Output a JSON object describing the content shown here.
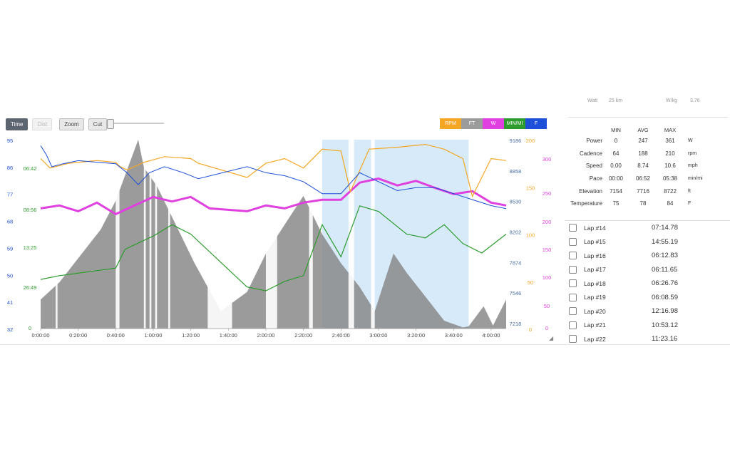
{
  "toolbar": {
    "time_label": "Time",
    "dist_label": "Dist",
    "zoom_label": "Zoom",
    "cut_label": "Cut"
  },
  "legend": [
    {
      "label": "RPM",
      "color": "#f5a623"
    },
    {
      "label": "FT",
      "color": "#9b9b9b"
    },
    {
      "label": "W",
      "color": "#e040e0"
    },
    {
      "label": "MIN/MI",
      "color": "#2e9b2e"
    },
    {
      "label": "F",
      "color": "#1d4fd8"
    }
  ],
  "summary_top": {
    "left": "Watt",
    "left_val": "25 km",
    "right": "W/kg",
    "right_val": "3.76"
  },
  "stats": {
    "headers": [
      "MIN",
      "AVG",
      "MAX"
    ],
    "rows": [
      {
        "label": "Power",
        "min": "0",
        "avg": "247",
        "max": "361",
        "unit": "W"
      },
      {
        "label": "Cadence",
        "min": "64",
        "avg": "188",
        "max": "210",
        "unit": "rpm"
      },
      {
        "label": "Speed",
        "min": "0.00",
        "avg": "8.74",
        "max": "10.6",
        "unit": "mph"
      },
      {
        "label": "Pace",
        "min": "00:00",
        "avg": "06:52",
        "max": "05:38",
        "unit": "min/mi"
      },
      {
        "label": "Elevation",
        "min": "7154",
        "avg": "7716",
        "max": "8722",
        "unit": "ft"
      },
      {
        "label": "Temperature",
        "min": "75",
        "avg": "78",
        "max": "84",
        "unit": "F"
      }
    ]
  },
  "laps": [
    {
      "name": "Lap #14",
      "time": "07:14.78"
    },
    {
      "name": "Lap #15",
      "time": "14:55.19"
    },
    {
      "name": "Lap #16",
      "time": "06:12.83"
    },
    {
      "name": "Lap #17",
      "time": "06:11.65"
    },
    {
      "name": "Lap #18",
      "time": "06:26.76"
    },
    {
      "name": "Lap #19",
      "time": "06:08.59"
    },
    {
      "name": "Lap #20",
      "time": "12:16.98"
    },
    {
      "name": "Lap #21",
      "time": "10:53.12"
    },
    {
      "name": "Lap #22",
      "time": "11:23.16"
    }
  ],
  "chart_data": {
    "type": "line",
    "title": "",
    "x_ticks": [
      "0:00:00",
      "0:20:00",
      "0:40:00",
      "1:00:00",
      "1:20:00",
      "1:40:00",
      "2:00:00",
      "2:20:00",
      "2:40:00",
      "3:00:00",
      "3:20:00",
      "3:40:00",
      "4:00:00"
    ],
    "xlim_minutes": [
      0,
      248
    ],
    "selection_minutes": [
      150,
      228
    ],
    "axes": {
      "temp_ticks": [
        "95",
        "86",
        "77",
        "68",
        "59",
        "50",
        "41",
        "32"
      ],
      "pace_ticks": [
        "06:42",
        "08:56",
        "13:25",
        "26:49",
        "0"
      ],
      "elev_ticks": [
        "9186",
        "8858",
        "8530",
        "8202",
        "7874",
        "7546",
        "7218"
      ],
      "rpm_ticks": [
        "200",
        "150",
        "100",
        "50",
        "0"
      ],
      "watt_ticks": [
        "300",
        "250",
        "200",
        "150",
        "100",
        "50",
        "0"
      ],
      "temp_color": "#1d4fd8",
      "pace_color": "#2e9b2e",
      "elev_color": "#4a6fa5",
      "rpm_color": "#f5a623",
      "watt_color": "#e040e0"
    },
    "series": [
      {
        "name": "FT",
        "points": [
          [
            0,
            7520
          ],
          [
            10,
            7700
          ],
          [
            20,
            7950
          ],
          [
            32,
            8250
          ],
          [
            40,
            8550
          ],
          [
            52,
            9186
          ],
          [
            55,
            8900
          ],
          [
            62,
            8700
          ],
          [
            72,
            8300
          ],
          [
            82,
            7900
          ],
          [
            96,
            7400
          ],
          [
            110,
            7600
          ],
          [
            120,
            8000
          ],
          [
            130,
            8300
          ],
          [
            140,
            8600
          ],
          [
            150,
            8200
          ],
          [
            160,
            7900
          ],
          [
            170,
            7650
          ],
          [
            178,
            7400
          ],
          [
            188,
            8000
          ],
          [
            195,
            7800
          ],
          [
            205,
            7550
          ],
          [
            215,
            7300
          ],
          [
            225,
            7230
          ],
          [
            228,
            7240
          ],
          [
            236,
            7450
          ],
          [
            241,
            7250
          ],
          [
            248,
            7520
          ]
        ]
      },
      {
        "name": "RPM",
        "points": [
          [
            0,
            180
          ],
          [
            5,
            170
          ],
          [
            15,
            175
          ],
          [
            30,
            178
          ],
          [
            40,
            176
          ],
          [
            42,
            172
          ],
          [
            46,
            168
          ],
          [
            55,
            176
          ],
          [
            66,
            182
          ],
          [
            80,
            180
          ],
          [
            84,
            175
          ],
          [
            110,
            160
          ],
          [
            120,
            175
          ],
          [
            130,
            180
          ],
          [
            140,
            170
          ],
          [
            150,
            190
          ],
          [
            160,
            188
          ],
          [
            165,
            145
          ],
          [
            175,
            190
          ],
          [
            190,
            192
          ],
          [
            205,
            195
          ],
          [
            215,
            190
          ],
          [
            225,
            180
          ],
          [
            230,
            140
          ],
          [
            240,
            180
          ],
          [
            248,
            178
          ]
        ]
      },
      {
        "name": "W",
        "points": [
          [
            0,
            210
          ],
          [
            10,
            215
          ],
          [
            20,
            205
          ],
          [
            30,
            220
          ],
          [
            40,
            200
          ],
          [
            50,
            215
          ],
          [
            60,
            230
          ],
          [
            70,
            222
          ],
          [
            80,
            230
          ],
          [
            90,
            210
          ],
          [
            110,
            205
          ],
          [
            120,
            215
          ],
          [
            130,
            210
          ],
          [
            140,
            220
          ],
          [
            150,
            225
          ],
          [
            160,
            225
          ],
          [
            170,
            255
          ],
          [
            180,
            262
          ],
          [
            190,
            250
          ],
          [
            200,
            258
          ],
          [
            210,
            246
          ],
          [
            220,
            235
          ],
          [
            230,
            240
          ],
          [
            240,
            220
          ],
          [
            248,
            215
          ]
        ]
      },
      {
        "name": "MIN/MI",
        "points": [
          [
            0,
            26
          ],
          [
            10,
            28
          ],
          [
            25,
            30
          ],
          [
            40,
            32
          ],
          [
            45,
            42
          ],
          [
            60,
            49
          ],
          [
            70,
            55
          ],
          [
            80,
            50
          ],
          [
            110,
            22
          ],
          [
            120,
            20
          ],
          [
            130,
            25
          ],
          [
            140,
            28
          ],
          [
            150,
            55
          ],
          [
            160,
            38
          ],
          [
            170,
            65
          ],
          [
            180,
            62
          ],
          [
            195,
            50
          ],
          [
            205,
            48
          ],
          [
            215,
            55
          ],
          [
            225,
            45
          ],
          [
            235,
            40
          ],
          [
            248,
            50
          ]
        ]
      },
      {
        "name": "F",
        "points": [
          [
            0,
            93
          ],
          [
            3,
            90
          ],
          [
            6,
            86
          ],
          [
            12,
            87
          ],
          [
            20,
            88
          ],
          [
            40,
            87
          ],
          [
            46,
            84
          ],
          [
            52,
            80
          ],
          [
            58,
            84
          ],
          [
            66,
            86
          ],
          [
            76,
            84
          ],
          [
            84,
            82
          ],
          [
            110,
            86
          ],
          [
            120,
            84
          ],
          [
            130,
            83
          ],
          [
            140,
            81
          ],
          [
            150,
            77
          ],
          [
            160,
            77
          ],
          [
            170,
            84
          ],
          [
            180,
            81
          ],
          [
            190,
            78
          ],
          [
            200,
            79
          ],
          [
            210,
            79
          ],
          [
            220,
            77
          ],
          [
            230,
            75
          ],
          [
            240,
            73
          ],
          [
            248,
            72
          ]
        ]
      }
    ]
  }
}
